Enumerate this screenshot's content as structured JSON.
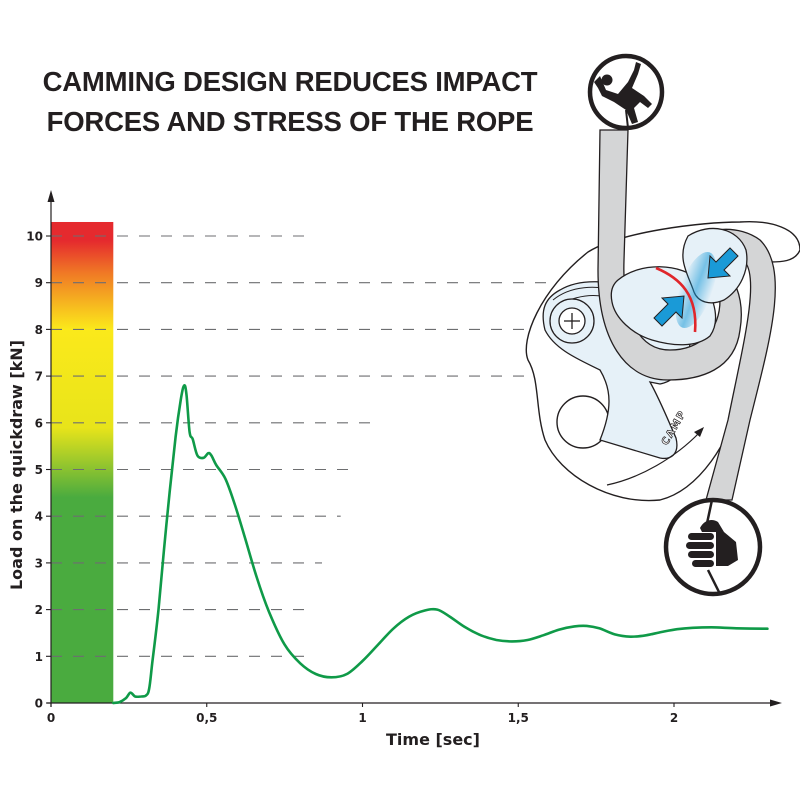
{
  "header": {
    "title_line1": "CAMMING DESIGN REDUCES IMPACT",
    "title_line2": "FORCES AND STRESS OF THE ROPE"
  },
  "illustration": {
    "brand_text": "CAMP",
    "icons": [
      "falling-climber-icon",
      "belay-hand-fist-icon",
      "compression-arrow-icon",
      "plus-screw-icon"
    ],
    "colors": {
      "rope": "#d4d5d6",
      "device_body": "#e6f1f8",
      "arrow": "#1a9ad7",
      "friction_mark": "#e0262b",
      "outline": "#231f20"
    }
  },
  "chart_data": {
    "type": "line",
    "title": "CAMMING DESIGN REDUCES IMPACT FORCES AND STRESS OF THE ROPE",
    "xlabel": "Time [sec]",
    "ylabel": "Load on the quickdraw [kN]",
    "xlim": [
      0,
      2.3
    ],
    "ylim": [
      0,
      10.5
    ],
    "x_ticks": [
      0,
      0.5,
      1,
      1.5,
      2
    ],
    "x_tick_labels": [
      "0",
      "0,5",
      "1",
      "1,5",
      "2"
    ],
    "y_ticks": [
      0,
      1,
      2,
      3,
      4,
      5,
      6,
      7,
      8,
      9,
      10
    ],
    "y_tick_labels": [
      "0",
      "1",
      "2",
      "3",
      "4",
      "5",
      "6",
      "7",
      "8",
      "9",
      "10"
    ],
    "grid": "dashed horizontal",
    "gridline_extent_sec": [
      0.82,
      0.82,
      0.82,
      0.87,
      0.93,
      0.96,
      1.03,
      1.81,
      2.03,
      2.17,
      0.82
    ],
    "color_scale_bar": {
      "x_range": [
        0,
        0.2
      ],
      "y_range": [
        0,
        10.3
      ],
      "gradient_stops": [
        {
          "kN": 0,
          "color": "#4aab3f"
        },
        {
          "kN": 4.4,
          "color": "#4aab3f"
        },
        {
          "kN": 5.9,
          "color": "#e8e41a"
        },
        {
          "kN": 8.0,
          "color": "#fbe91b"
        },
        {
          "kN": 9.2,
          "color": "#f07a25"
        },
        {
          "kN": 9.9,
          "color": "#e52a2e"
        },
        {
          "kN": 10.3,
          "color": "#e52a2e"
        }
      ]
    },
    "series": [
      {
        "name": "Load",
        "color": "#0f9a48",
        "x": [
          0.2,
          0.22,
          0.24,
          0.255,
          0.27,
          0.29,
          0.305,
          0.315,
          0.325,
          0.345,
          0.37,
          0.4,
          0.418,
          0.428,
          0.435,
          0.445,
          0.455,
          0.47,
          0.49,
          0.505,
          0.515,
          0.53,
          0.56,
          0.59,
          0.62,
          0.66,
          0.7,
          0.75,
          0.8,
          0.85,
          0.9,
          0.95,
          1.0,
          1.05,
          1.1,
          1.15,
          1.2,
          1.24,
          1.28,
          1.33,
          1.38,
          1.43,
          1.48,
          1.53,
          1.58,
          1.63,
          1.68,
          1.72,
          1.76,
          1.81,
          1.86,
          1.91,
          1.96,
          2.01,
          2.06,
          2.12,
          2.2,
          2.3
        ],
        "y": [
          0.0,
          0.02,
          0.1,
          0.22,
          0.14,
          0.14,
          0.16,
          0.3,
          0.85,
          2.0,
          3.8,
          5.7,
          6.55,
          6.8,
          6.6,
          5.8,
          5.65,
          5.3,
          5.25,
          5.35,
          5.3,
          5.1,
          4.8,
          4.25,
          3.6,
          2.7,
          1.95,
          1.25,
          0.85,
          0.62,
          0.55,
          0.62,
          0.9,
          1.25,
          1.6,
          1.85,
          1.98,
          2.0,
          1.85,
          1.62,
          1.45,
          1.35,
          1.32,
          1.35,
          1.45,
          1.57,
          1.64,
          1.65,
          1.6,
          1.47,
          1.42,
          1.45,
          1.52,
          1.58,
          1.61,
          1.62,
          1.6,
          1.59
        ]
      }
    ]
  }
}
